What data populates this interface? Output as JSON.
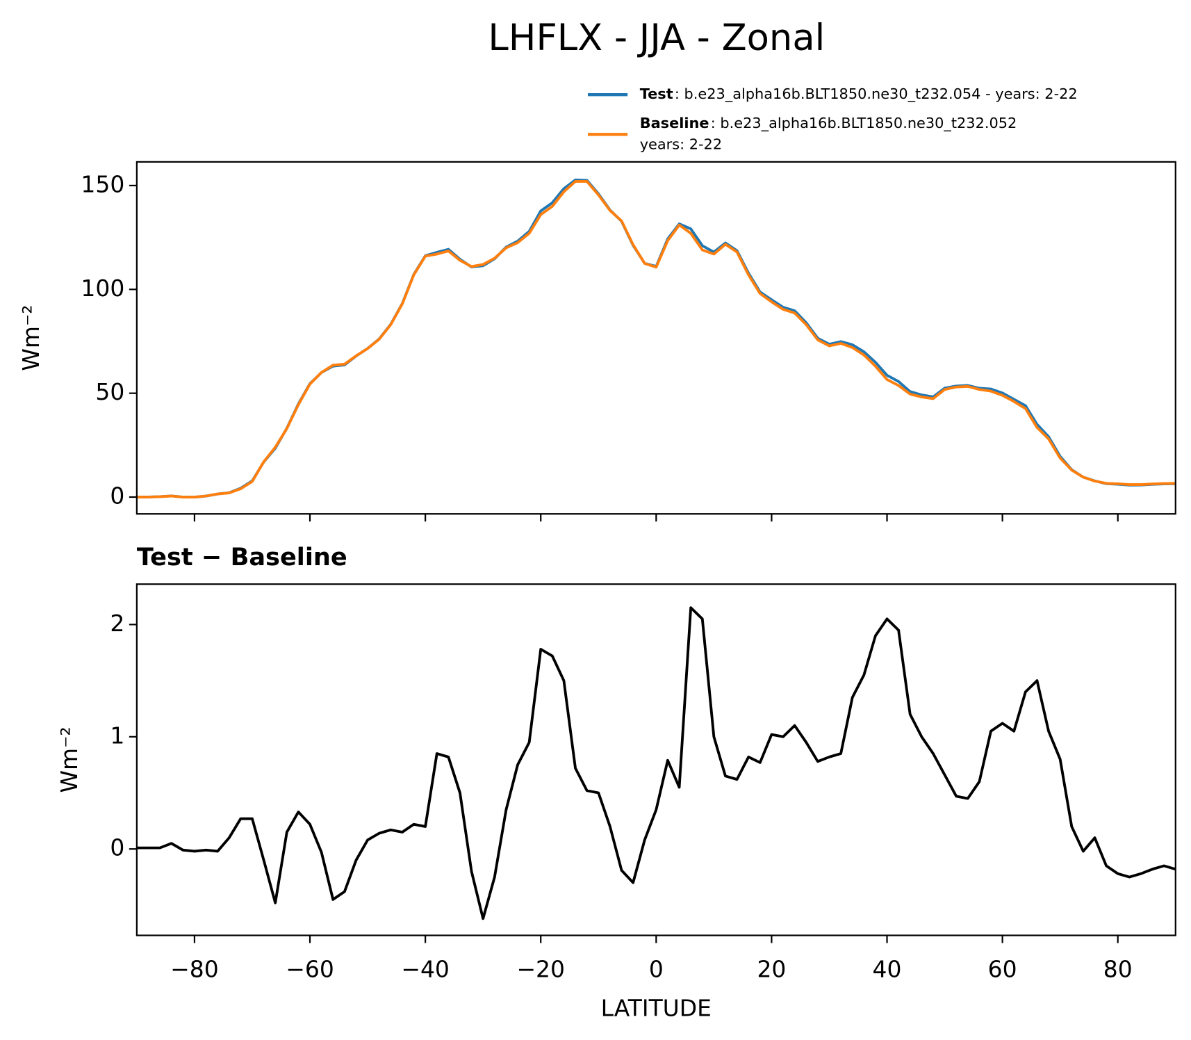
{
  "title": "LHFLX - JJA - Zonal",
  "chart_data": [
    {
      "type": "line",
      "ylabel": "Wm⁻²",
      "legend": "upper right",
      "x": [
        -90,
        -88,
        -86,
        -84,
        -82,
        -80,
        -78,
        -76,
        -74,
        -72,
        -70,
        -68,
        -66,
        -64,
        -62,
        -60,
        -58,
        -56,
        -54,
        -52,
        -50,
        -48,
        -46,
        -44,
        -42,
        -40,
        -38,
        -36,
        -34,
        -32,
        -30,
        -28,
        -26,
        -24,
        -22,
        -20,
        -18,
        -16,
        -14,
        -12,
        -10,
        -8,
        -6,
        -4,
        -2,
        0,
        2,
        4,
        6,
        8,
        10,
        12,
        14,
        16,
        18,
        20,
        22,
        24,
        26,
        28,
        30,
        32,
        34,
        36,
        38,
        40,
        42,
        44,
        46,
        48,
        50,
        52,
        54,
        56,
        58,
        60,
        62,
        64,
        66,
        68,
        70,
        72,
        74,
        76,
        78,
        80,
        82,
        84,
        86,
        88,
        90
      ],
      "series": [
        {
          "name": "Test",
          "description": [
            ": b.e23_alpha16b.BLT1850.ne30_t232.054 - years: 2-22"
          ],
          "color": "#1f77b4",
          "values": [
            0.01,
            0.01,
            0.21,
            0.55,
            -0.01,
            -0.02,
            0.49,
            1.48,
            2.1,
            4.27,
            7.77,
            16.9,
            23.52,
            33.15,
            44.83,
            54.62,
            59.97,
            63.05,
            63.62,
            67.9,
            71.58,
            76.14,
            83.17,
            93.15,
            107.22,
            116.2,
            117.85,
            119.32,
            114.5,
            110.8,
            111.38,
            114.75,
            120.35,
            123.25,
            127.95,
            137.78,
            141.72,
            148.5,
            152.72,
            152.52,
            146,
            138.2,
            132.81,
            121.2,
            112.58,
            111.05,
            124.29,
            131.55,
            129.15,
            121.05,
            118,
            122.35,
            118.62,
            107.82,
            98.77,
            95.02,
            91.4,
            89.7,
            83.95,
            76.48,
            73.62,
            74.85,
            73.35,
            69.95,
            64.9,
            58.65,
            55.65,
            50.8,
            49.2,
            48.25,
            52.46,
            53.47,
            53.75,
            52.4,
            52.05,
            50.12,
            47.05,
            44,
            35,
            29.05,
            19.6,
            13.2,
            9.58,
            7.8,
            6.45,
            6.18,
            5.75,
            5.78,
            6.12,
            6.35,
            6.42
          ]
        },
        {
          "name": "Baseline",
          "description": [
            ": b.e23_alpha16b.BLT1850.ne30_t232.052",
            "years: 2-22"
          ],
          "color": "#ff7f0e",
          "values": [
            0,
            0,
            0.2,
            0.5,
            0,
            0,
            0.5,
            1.5,
            2,
            4,
            7.5,
            17,
            24,
            33,
            44.5,
            54.4,
            60,
            63.5,
            64,
            68,
            71.5,
            76,
            83,
            93,
            107,
            116,
            117,
            118.5,
            114,
            111,
            112,
            115,
            120,
            122.5,
            127,
            136,
            140,
            147,
            152,
            152,
            145.5,
            138,
            133,
            121.5,
            112.5,
            110.7,
            123.5,
            131,
            127,
            119,
            117,
            121.7,
            118,
            107,
            98,
            94,
            90.4,
            88.6,
            83,
            75.7,
            72.8,
            74,
            72,
            68.4,
            63,
            56.6,
            53.7,
            49.6,
            48.2,
            47.4,
            51.8,
            53,
            53.3,
            51.8,
            51,
            49,
            46,
            42.6,
            33.5,
            28,
            18.8,
            13,
            9.6,
            7.7,
            6.6,
            6.4,
            6,
            6,
            6.3,
            6.5,
            6.6
          ]
        }
      ],
      "xlim": [
        -90,
        90
      ],
      "xticks": [
        -80,
        -60,
        -40,
        -20,
        0,
        20,
        40,
        60,
        80
      ],
      "ylim": [
        -8.1,
        161.4
      ],
      "yticks": [
        0,
        50,
        100,
        150
      ]
    },
    {
      "type": "line",
      "title": "Test − Baseline",
      "ylabel": "Wm⁻²",
      "xlabel": "LATITUDE",
      "x": [
        -90,
        -88,
        -86,
        -84,
        -82,
        -80,
        -78,
        -76,
        -74,
        -72,
        -70,
        -68,
        -66,
        -64,
        -62,
        -60,
        -58,
        -56,
        -54,
        -52,
        -50,
        -48,
        -46,
        -44,
        -42,
        -40,
        -38,
        -36,
        -34,
        -32,
        -30,
        -28,
        -26,
        -24,
        -22,
        -20,
        -18,
        -16,
        -14,
        -12,
        -10,
        -8,
        -6,
        -4,
        -2,
        0,
        2,
        4,
        6,
        8,
        10,
        12,
        14,
        16,
        18,
        20,
        22,
        24,
        26,
        28,
        30,
        32,
        34,
        36,
        38,
        40,
        42,
        44,
        46,
        48,
        50,
        52,
        54,
        56,
        58,
        60,
        62,
        64,
        66,
        68,
        70,
        72,
        74,
        76,
        78,
        80,
        82,
        84,
        86,
        88,
        90
      ],
      "series": [
        {
          "color": "#000000",
          "values": [
            0.01,
            0.01,
            0.01,
            0.05,
            -0.01,
            -0.02,
            -0.01,
            -0.02,
            0.1,
            0.27,
            0.27,
            -0.1,
            -0.48,
            0.15,
            0.33,
            0.22,
            -0.03,
            -0.45,
            -0.38,
            -0.1,
            0.08,
            0.14,
            0.17,
            0.15,
            0.22,
            0.2,
            0.85,
            0.82,
            0.5,
            -0.2,
            -0.62,
            -0.25,
            0.35,
            0.75,
            0.95,
            1.78,
            1.72,
            1.5,
            0.72,
            0.52,
            0.5,
            0.2,
            -0.19,
            -0.3,
            0.08,
            0.35,
            0.79,
            0.55,
            2.15,
            2.05,
            1.0,
            0.65,
            0.62,
            0.82,
            0.77,
            1.02,
            1.0,
            1.1,
            0.95,
            0.78,
            0.82,
            0.85,
            1.35,
            1.55,
            1.9,
            2.05,
            1.95,
            1.2,
            1.0,
            0.85,
            0.66,
            0.47,
            0.45,
            0.6,
            1.05,
            1.12,
            1.05,
            1.4,
            1.5,
            1.05,
            0.8,
            0.2,
            -0.02,
            0.1,
            -0.15,
            -0.22,
            -0.25,
            -0.22,
            -0.18,
            -0.15,
            -0.18
          ]
        }
      ],
      "xlim": [
        -90,
        90
      ],
      "xticks": [
        {
          "value": -80,
          "label": "−80"
        },
        {
          "value": -60,
          "label": "−60"
        },
        {
          "value": -40,
          "label": "−40"
        },
        {
          "value": -20,
          "label": "−20"
        },
        0,
        20,
        40,
        60,
        80
      ],
      "ylim": [
        -0.77,
        2.36
      ],
      "yticks": [
        0,
        1,
        2
      ]
    }
  ]
}
